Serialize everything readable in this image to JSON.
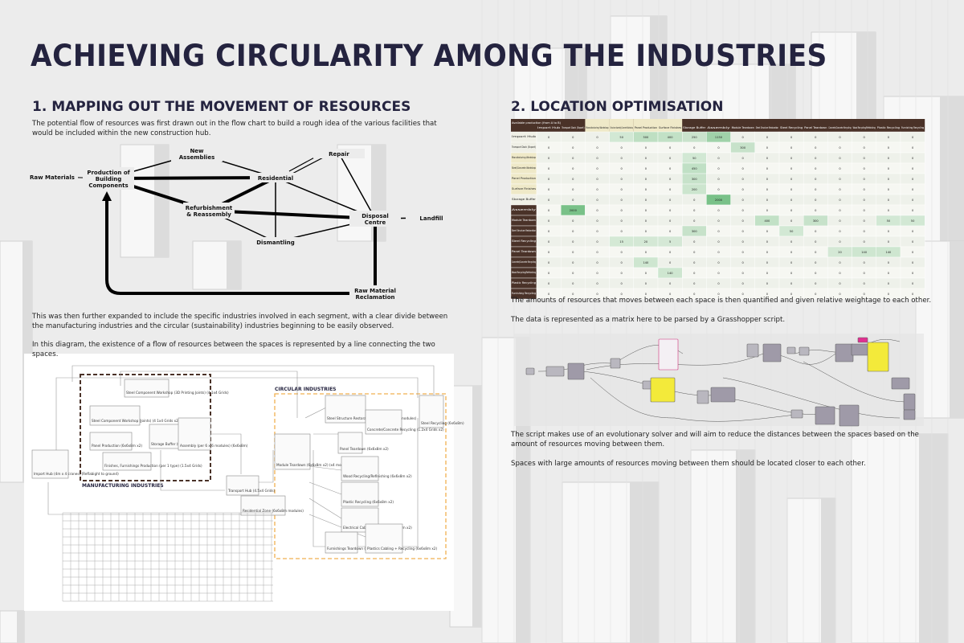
{
  "title": "ACHIEVING CIRCULARITY AMONG THE INDUSTRIES",
  "section1": {
    "heading": "1. MAPPING OUT THE MOVEMENT OF RESOURCES",
    "intro": "The potential flow of resources was first drawn out in the flow chart to build a rough idea of the various facilities that would be included within the new construction hub.",
    "flowchart": {
      "nodes": [
        "Raw Materials",
        "Production of Building Components",
        "New Assemblies",
        "Repair",
        "Residential",
        "Refurbishment & Reassembly",
        "Disposal Centre",
        "Landfill",
        "Dismantling",
        "Raw Material Reclamation"
      ]
    },
    "paragraphs": [
      "This was then further expanded to include the specific industries involved in each segment, with a clear divide between the manufacturing industries and the circular (sustainability) industries beginning to be easily observed.",
      "In this diagram, the existence of a flow of resources between the spaces is represented by a line connecting the two spaces."
    ],
    "diagram": {
      "groups": [
        "MANUFACTURING INDUSTRIES",
        "CIRCULAR INDUSTRIES"
      ],
      "boxes": [
        "Import Hub (4m x 4 cranes) (Reflabight to ground)",
        "Steel Component Workshop (3D Printing Joints) (4 1x4 Grids)",
        "Steel Component Workshop (Joints) (4 1x4 Grids x2)",
        "Panel Production (6x6x8m x2)",
        "Finishes, Furnishings Production (per 1 type) (1.5x4 Grids)",
        "Storage Buffer (6x6x8m)",
        "Assembly (per 6 x 6 modules) (6x6x8m)",
        "Transport Hub (4.5x4 Grids)",
        "Residential Zone (6x6x8m modules)",
        "Module Teardown (6x6x8m x2) (x4 modules)",
        "Steel Structure Restoration (6x6x8m) (x4 4 modules)",
        "Panel Teardown (6x6x8m x2)",
        "Concrete/Concrete Recycling (1.2x4 Grids x2)",
        "Steel Recycling (6x6x8m)",
        "Wood Recycling/Refinishing (6x6x8m x2)",
        "Plastic Recycling (6x6x8m x2)",
        "Electrical Cabling Recycling (6x6x8m x2)",
        "Furnishings Teardown (6x6x8m)",
        "Plastics Cabling + Recycling (6x6x8m x2)"
      ]
    }
  },
  "section2": {
    "heading": "2. LOCATION OPTIMISATION",
    "matrix": {
      "corner": "Available production (from A to B)",
      "columns": [
        "Import Hub",
        "Transport Dock (Export)",
        "Manufacturing Workshop",
        "Structure Assembly/Concrete Workshop",
        "Panel Production",
        "Surface Finishes",
        "Storage Buffer",
        "Assembly",
        "Module Teardown",
        "Steel Structure Restoration",
        "Steel Recycling",
        "Panel Teardown",
        "Concrete/Concrete Recycling",
        "Wood Recycling/Refinishing",
        "Plastic Recycling",
        "Furnishing Recycling"
      ],
      "rows": [
        "Import Hub",
        "Transport Dock (Export)",
        "Manufacturing Workshop",
        "Steel/Concrete Workshop",
        "Panel Production",
        "Surface Finishes",
        "Storage Buffer",
        "Assembly",
        "Module Teardown",
        "Steel Structure Restoration",
        "Steel Recycling",
        "Panel Teardown",
        "Concrete/Concrete Recycling",
        "Wood Recycling/Refinishing",
        "Plastic Recycling",
        "Furnishing Recycling"
      ],
      "values": [
        [
          0,
          0,
          0,
          50,
          500,
          400,
          250,
          1150,
          0,
          0,
          0,
          0,
          0,
          0,
          0,
          0
        ],
        [
          0,
          0,
          0,
          0,
          0,
          0,
          0,
          0,
          300,
          0,
          0,
          0,
          0,
          0,
          0,
          0
        ],
        [
          0,
          0,
          0,
          0,
          0,
          0,
          50,
          0,
          0,
          0,
          0,
          0,
          0,
          0,
          0,
          0
        ],
        [
          0,
          0,
          0,
          0,
          0,
          0,
          450,
          0,
          0,
          0,
          0,
          0,
          0,
          0,
          0,
          0
        ],
        [
          0,
          0,
          0,
          0,
          0,
          0,
          300,
          0,
          0,
          0,
          0,
          0,
          0,
          0,
          0,
          0
        ],
        [
          0,
          0,
          0,
          0,
          0,
          0,
          200,
          0,
          0,
          0,
          0,
          0,
          0,
          0,
          0,
          0
        ],
        [
          0,
          0,
          0,
          0,
          0,
          0,
          0,
          2000,
          0,
          0,
          0,
          0,
          0,
          0,
          0,
          0
        ],
        [
          0,
          2000,
          0,
          0,
          0,
          0,
          0,
          0,
          0,
          0,
          0,
          0,
          0,
          0,
          0,
          0
        ],
        [
          0,
          0,
          0,
          0,
          0,
          0,
          0,
          0,
          0,
          400,
          0,
          300,
          0,
          0,
          50,
          50
        ],
        [
          0,
          0,
          0,
          0,
          0,
          0,
          300,
          0,
          0,
          0,
          50,
          0,
          0,
          0,
          0,
          0
        ],
        [
          0,
          0,
          0,
          15,
          20,
          5,
          0,
          0,
          0,
          0,
          0,
          0,
          0,
          0,
          0,
          0
        ],
        [
          0,
          0,
          0,
          0,
          0,
          0,
          0,
          0,
          0,
          0,
          0,
          0,
          20,
          140,
          140,
          0
        ],
        [
          0,
          0,
          0,
          0,
          140,
          0,
          0,
          0,
          0,
          0,
          0,
          0,
          0,
          0,
          0,
          0
        ],
        [
          0,
          0,
          0,
          0,
          0,
          140,
          0,
          0,
          0,
          0,
          0,
          0,
          0,
          0,
          0,
          0
        ],
        [
          0,
          0,
          0,
          0,
          0,
          0,
          0,
          0,
          0,
          0,
          0,
          0,
          0,
          0,
          0,
          0
        ],
        [
          0,
          0,
          0,
          0,
          0,
          0,
          0,
          0,
          0,
          0,
          0,
          0,
          0,
          0,
          0,
          0
        ]
      ]
    },
    "paragraphs": [
      "The amounts of resources that moves between each space is then quantified and given relative weightage to each other.",
      "The data is represented as a matrix here to be parsed by a Grasshopper script.",
      "The script makes use of an evolutionary solver and will aim to reduce the distances between the spaces based on the amount of resources moving between them.",
      "Spaces with large amounts of resources moving between them should be located closer to each other."
    ]
  }
}
